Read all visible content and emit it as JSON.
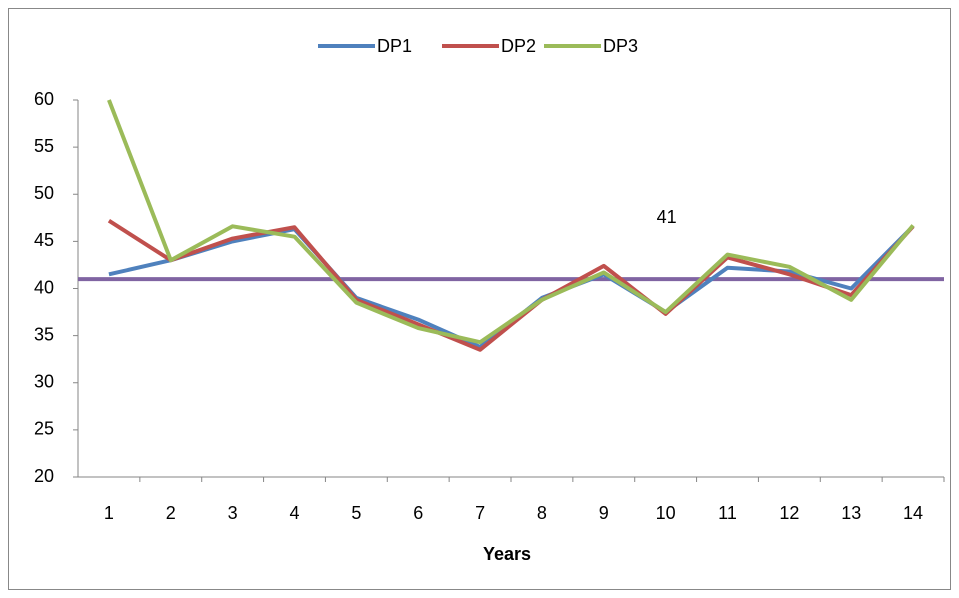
{
  "chart_data": {
    "type": "line",
    "x_label": "Years",
    "categories": [
      "1",
      "2",
      "3",
      "4",
      "5",
      "6",
      "7",
      "8",
      "9",
      "10",
      "11",
      "12",
      "13",
      "14"
    ],
    "series": [
      {
        "name": "DP1",
        "color": "#4f81bd",
        "values": [
          41.5,
          43,
          45,
          46.3,
          39,
          36.7,
          33.8,
          39,
          41.5,
          37.5,
          42.2,
          41.8,
          40,
          46.6
        ]
      },
      {
        "name": "DP2",
        "color": "#c0504d",
        "values": [
          47.2,
          43,
          45.3,
          46.5,
          38.8,
          36.2,
          33.5,
          38.8,
          42.4,
          37.3,
          43.3,
          41.5,
          39.3,
          46.6
        ]
      },
      {
        "name": "DP3",
        "color": "#9bbb59",
        "values": [
          60,
          43,
          46.6,
          45.5,
          38.5,
          35.8,
          34.3,
          38.8,
          41.7,
          37.5,
          43.6,
          42.3,
          38.8,
          46.7
        ]
      }
    ],
    "reference_line": {
      "value": 41,
      "color": "#8064a2"
    },
    "ylim": [
      20,
      60
    ],
    "yticks": [
      20,
      25,
      30,
      35,
      40,
      45,
      50,
      55,
      60
    ],
    "grid": false,
    "legend": "top"
  }
}
